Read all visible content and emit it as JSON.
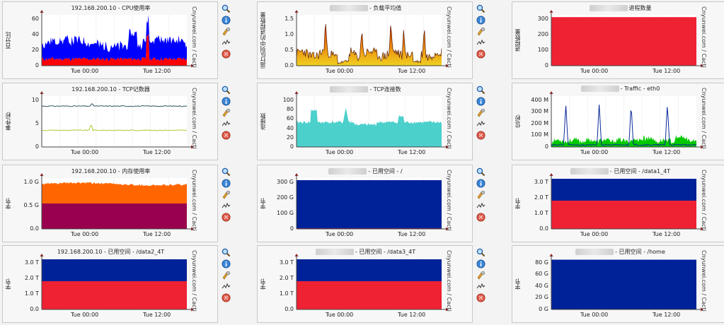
{
  "page": {
    "vendor_label": "Cnyunwei.com / Cacti",
    "x_ticks": [
      "Tue 00:00",
      "Tue 12:00"
    ]
  },
  "icons": [
    "zoom-icon",
    "info-icon",
    "properties-icon",
    "graph-icon",
    "delete-icon"
  ],
  "charts": [
    {
      "title": "192.168.200.10 - CPU使用率",
      "ylabel": "百分比",
      "yticks": [
        "60",
        "40",
        "20",
        "0"
      ],
      "ymax": 65,
      "style": "cpu"
    },
    {
      "title": "- 负载平均值",
      "ylabel": "运行队列中的进程数量",
      "yticks": [
        "1.5",
        "1.0",
        "0.5",
        "0.0"
      ],
      "ymax": 1.85,
      "style": "load"
    },
    {
      "title": "进程数量",
      "ylabel": "进程数量",
      "yticks": [
        "300",
        "200",
        "100",
        "0"
      ],
      "ymax": 330,
      "style": "proc"
    },
    {
      "title": "192.168.200.10 - TCP记数器",
      "ylabel": "事件/秒",
      "yticks": [
        "10",
        "5",
        "0"
      ],
      "ymax": 16,
      "style": "tcpc"
    },
    {
      "title": "- TCP连接数",
      "ylabel": "连接数",
      "yticks": [
        "100",
        "80",
        "60",
        "40",
        "20",
        "0"
      ],
      "ymax": 105,
      "style": "tcpconn"
    },
    {
      "title": "- Traffic - eth0",
      "ylabel": "位/秒",
      "yticks": [
        "400 M",
        "300 M",
        "200 M",
        "100 M",
        "0"
      ],
      "ymax": 420,
      "style": "traffic"
    },
    {
      "title": "192.168.200.10 - 内存使用率",
      "ylabel": "字节",
      "yticks": [
        "1.0 G",
        "0.5 G",
        "0.0"
      ],
      "ymax": 1.3,
      "style": "mem"
    },
    {
      "title": "- 已用空间 - /",
      "ylabel": "字节",
      "yticks": [
        "300 G",
        "200 G",
        "100 G",
        "0"
      ],
      "ymax": 360,
      "style": "diskroot"
    },
    {
      "title": "- 已用空间 - /data1_4T",
      "ylabel": "字节",
      "yticks": [
        "3.0 T",
        "2.0 T",
        "1.0 T",
        "0.0"
      ],
      "ymax": 3.6,
      "style": "disk4t"
    },
    {
      "title": "192.168.200.10 - 已用空间 - /data2_4T",
      "ylabel": "字节",
      "yticks": [
        "3.0 T",
        "2.0 T",
        "1.0 T",
        "0.0"
      ],
      "ymax": 3.6,
      "style": "disk4t"
    },
    {
      "title": "- 已用空间 - /data3_4T",
      "ylabel": "字节",
      "yticks": [
        "3.0 T",
        "2.0 T",
        "1.0 T",
        "0.0"
      ],
      "ymax": 3.6,
      "style": "disk4t"
    },
    {
      "title": "- 已用空间 - /home",
      "ylabel": "字节",
      "yticks": [
        "80 G",
        "60 G",
        "40 G",
        "20 G",
        "0 G"
      ],
      "ymax": 98,
      "style": "home"
    }
  ],
  "colors": {
    "grid": "#d8d8d8",
    "cpu_user": "#0000ff",
    "cpu_sys": "#ff0000",
    "load_fill_top": "#e53a00",
    "load_fill_bottom": "#f0d020",
    "proc": "#ee2233",
    "tcp_line1": "#335566",
    "tcp_line2": "#aacc33",
    "tcpconn": "#4cd0cc",
    "traffic_in": "#00c800",
    "traffic_out": "#0a2a9a",
    "mem_top": "#ff6600",
    "mem_bottom": "#99004d",
    "disk_total": "#002299",
    "disk_used": "#ee2233"
  }
}
